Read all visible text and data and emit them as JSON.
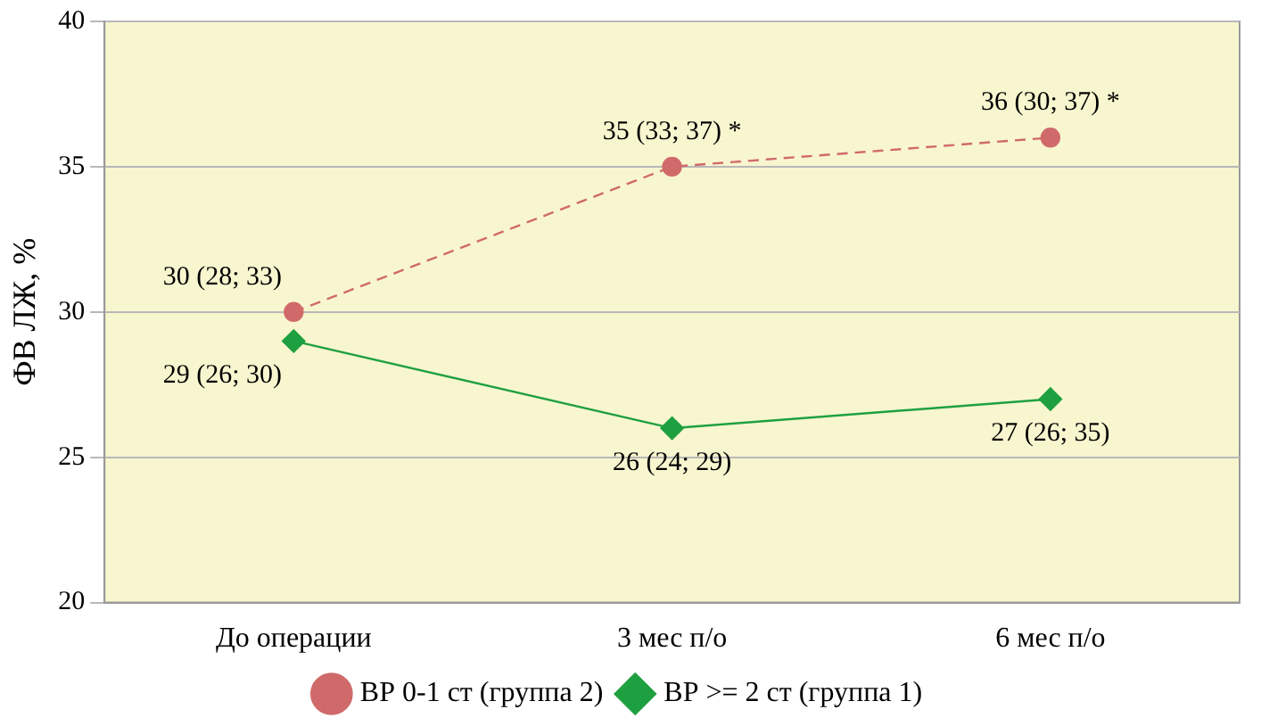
{
  "chart_data": {
    "type": "line",
    "ylabel": "ФВ ЛЖ, %",
    "categories": [
      "До операции",
      "3 мес п/о",
      "6 мес п/о"
    ],
    "ylim": [
      20,
      40
    ],
    "yticks": [
      20,
      25,
      30,
      35,
      40
    ],
    "grid": "y",
    "legend": "bottom",
    "series": [
      {
        "name": "ВР 0-1 ст (группа 2)",
        "color": "#d06a6a",
        "values": [
          30,
          35,
          36
        ],
        "marker": "circle",
        "line_style": "dashed",
        "value_labels": [
          "30 (28; 33)",
          "35 (33; 37) *",
          "36 (30; 37) *"
        ]
      },
      {
        "name": "ВР >= 2 ст (группа 1)",
        "color": "#1fa040",
        "values": [
          29,
          26,
          27
        ],
        "marker": "diamond",
        "line_style": "solid",
        "value_labels": [
          "29 (26; 30)",
          "26 (24; 29)",
          "27 (26; 35)"
        ]
      }
    ]
  }
}
